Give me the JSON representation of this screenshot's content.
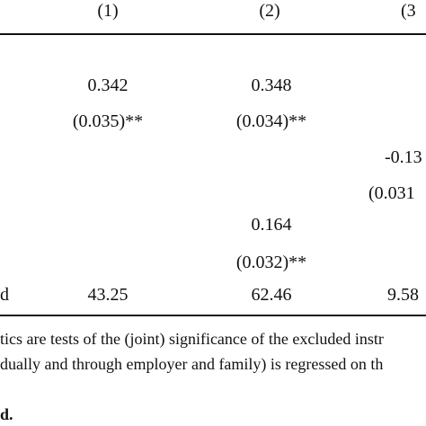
{
  "table": {
    "header": {
      "col1": "(1)",
      "col2": "(2)",
      "col3": "(3"
    },
    "rows": [
      {
        "col1": "0.342",
        "col2": "0.348"
      },
      {
        "col1": "(0.035)**",
        "col2": "(0.034)**"
      },
      {
        "col3": "-0.13"
      },
      {
        "col3": "(0.031"
      },
      {
        "col2": "0.164"
      },
      {
        "col2": "(0.032)**"
      },
      {
        "label": "d",
        "col1": "43.25",
        "col2": "62.46",
        "col3": "9.58"
      }
    ]
  },
  "notes": [
    "tics are tests of the (joint) significance of the excluded instr",
    "dually and through employer and family) is regressed on th",
    "d."
  ]
}
